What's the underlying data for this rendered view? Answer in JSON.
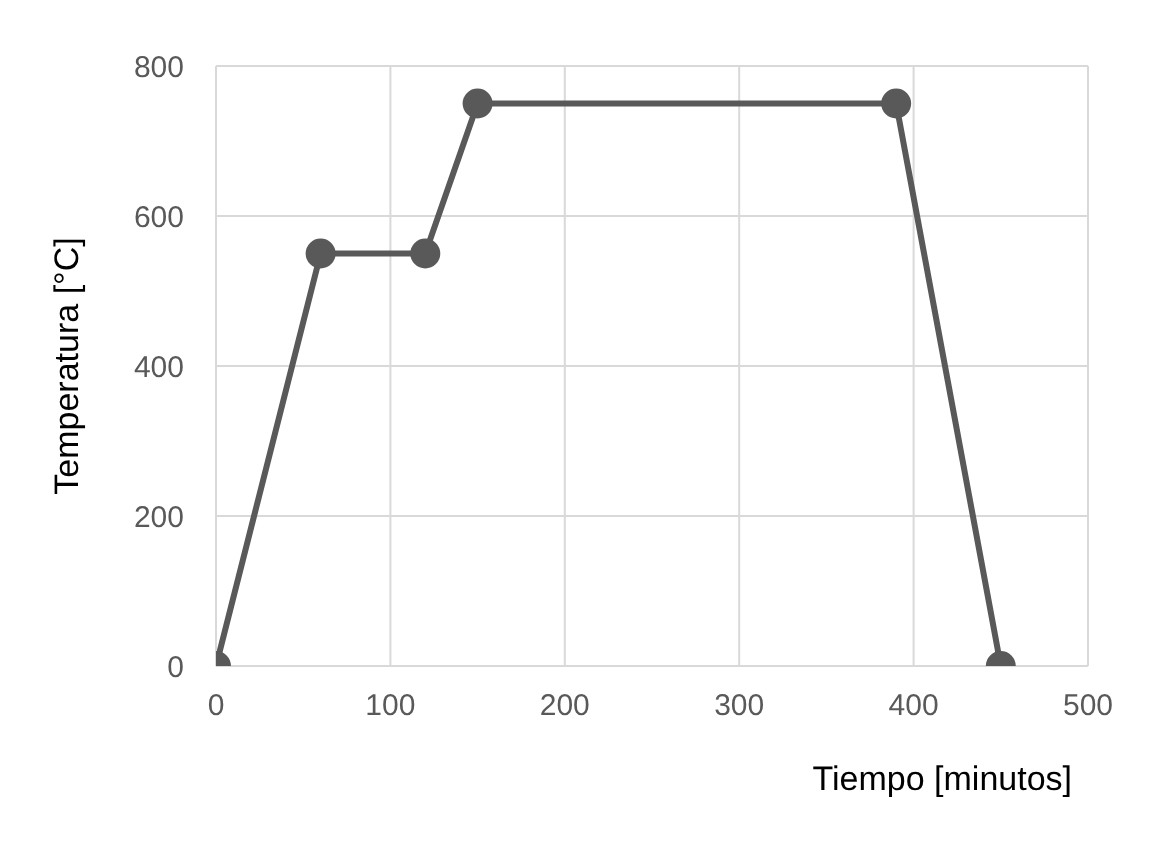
{
  "chart_data": {
    "type": "line",
    "xlabel": "Tiempo [minutos]",
    "ylabel": "Temperatura [°C]",
    "x": [
      0,
      60,
      120,
      150,
      390,
      450
    ],
    "series": [
      {
        "color": "#595959",
        "values": [
          0,
          550,
          550,
          750,
          750,
          0
        ]
      }
    ],
    "xlim": [
      0,
      500
    ],
    "xticks": [
      0,
      100,
      200,
      300,
      400,
      500
    ],
    "ylim": [
      0,
      800
    ],
    "yticks": [
      0,
      200,
      400,
      600,
      800
    ],
    "grid": true,
    "marker": "circle",
    "line_style": "solid"
  }
}
